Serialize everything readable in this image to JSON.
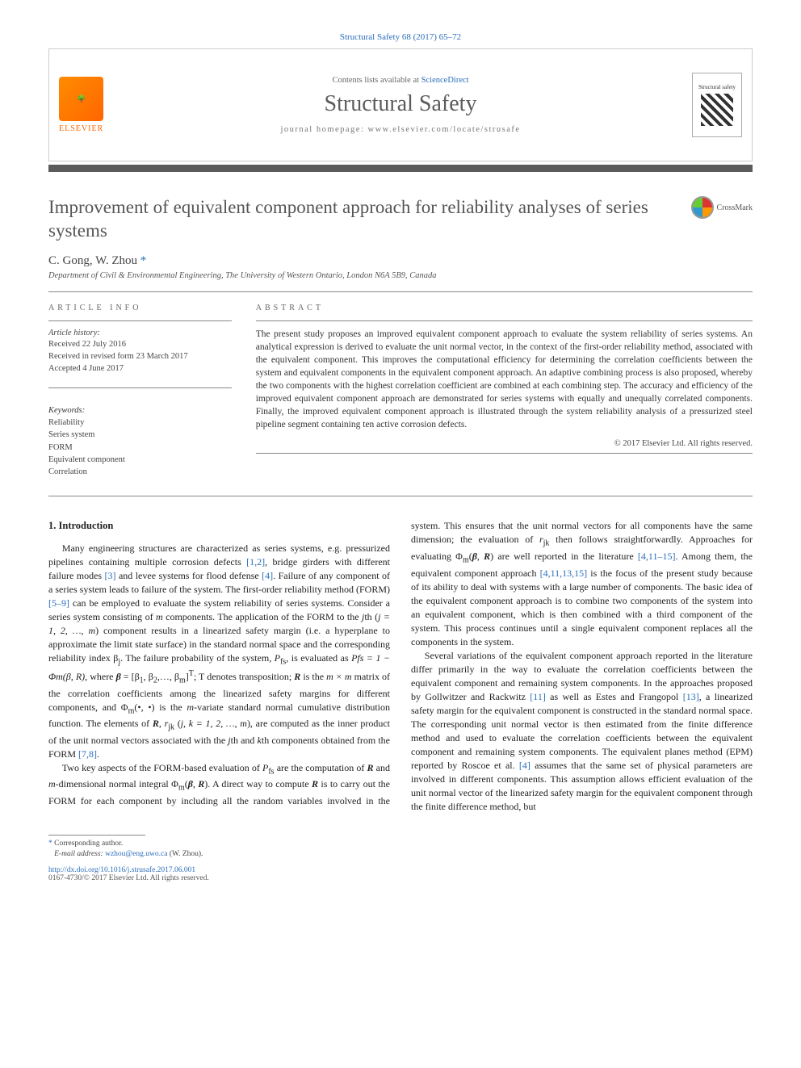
{
  "citation": "Structural Safety 68 (2017) 65–72",
  "masthead": {
    "contents_prefix": "Contents lists available at ",
    "contents_link": "ScienceDirect",
    "journal": "Structural Safety",
    "homepage_prefix": "journal homepage: ",
    "homepage": "www.elsevier.com/locate/strusafe",
    "publisher_label": "ELSEVIER",
    "cover_label": "Structural safety"
  },
  "title": "Improvement of equivalent component approach for reliability analyses of series systems",
  "crossmark": "CrossMark",
  "authors": "C. Gong, W. Zhou",
  "affiliation": "Department of Civil & Environmental Engineering, The University of Western Ontario, London N6A 5B9, Canada",
  "info": {
    "label": "ARTICLE INFO",
    "history_label": "Article history:",
    "received": "Received 22 July 2016",
    "revised": "Received in revised form 23 March 2017",
    "accepted": "Accepted 4 June 2017",
    "keywords_label": "Keywords:",
    "keywords": [
      "Reliability",
      "Series system",
      "FORM",
      "Equivalent component",
      "Correlation"
    ]
  },
  "abstract": {
    "label": "ABSTRACT",
    "text": "The present study proposes an improved equivalent component approach to evaluate the system reliability of series systems. An analytical expression is derived to evaluate the unit normal vector, in the context of the first-order reliability method, associated with the equivalent component. This improves the computational efficiency for determining the correlation coefficients between the system and equivalent components in the equivalent component approach. An adaptive combining process is also proposed, whereby the two components with the highest correlation coefficient are combined at each combining step. The accuracy and efficiency of the improved equivalent component approach are demonstrated for series systems with equally and unequally correlated components. Finally, the improved equivalent component approach is illustrated through the system reliability analysis of a pressurized steel pipeline segment containing ten active corrosion defects.",
    "copyright": "© 2017 Elsevier Ltd. All rights reserved."
  },
  "body": {
    "heading": "1. Introduction",
    "p1a": "Many engineering structures are characterized as series systems, e.g. pressurized pipelines containing multiple corrosion defects ",
    "c1": "[1,2]",
    "p1b": ", bridge girders with different failure modes ",
    "c2": "[3]",
    "p1c": " and levee systems for flood defense ",
    "c3": "[4]",
    "p1d": ". Failure of any component of a series system leads to failure of the system. The first-order reliability method (FORM) ",
    "c4": "[5–9]",
    "p1e": " can be employed to evaluate the system reliability of series systems. Consider a series system consisting of ",
    "i_m": "m",
    "p1f": " components. The application of the FORM to the ",
    "i_j": "j",
    "p1g": "th (",
    "i_jrange": "j = 1, 2, …, m",
    "p1h": ") component results in a linearized safety margin (i.e. a hyperplane to approximate the limit state surface) in the standard normal space and the corresponding reliability index β",
    "sub_j": "j",
    "p1i": ". The failure probability of the system, ",
    "i_Pfs": "P",
    "sub_fs": "fs",
    "p1j": ", is evaluated as ",
    "eq1": "Pfs = 1 − Φm(β, R)",
    "p1k": ", where ",
    "i_beta": "β",
    "p1l": " = [β",
    "sub1": "1",
    "p1m": ", β",
    "sub2": "2",
    "p1n": ",…, β",
    "subm": "m",
    "p1o": "]",
    "supT": "T",
    "p1p": "; T denotes transposition; ",
    "i_R": "R",
    "p1q": " is the ",
    "i_mxm": "m × m",
    "p1r": " matrix of the correlation coefficients among the linearized safety margins for different components, and Φ",
    "subm2": "m",
    "p1s": "(•, •) is the ",
    "i_m2": "m",
    "p1t": "-variate standard normal cumulative distribution function. The elements of ",
    "i_R2": "R",
    "p1u": ", ",
    "i_rjk": "r",
    "sub_jk": "jk",
    "p1v": " (",
    "i_jk": "j, k = 1, 2, …, m",
    "p1w": "), are computed as the inner product of the unit normal vectors associated with the ",
    "i_j2": "j",
    "p1x": "th and ",
    "i_k": "k",
    "p1y": "th components obtained from the FORM ",
    "c5": "[7,8]",
    "p1z": ".",
    "p2a": "Two key aspects of the FORM-based evaluation of ",
    "i_Pfs2": "P",
    "sub_fs2": "fs",
    "p2b": " are the computation of ",
    "i_R3": "R",
    "p2c": " and ",
    "i_m3": "m",
    "p2d": "-dimensional normal integral Φ",
    "subm3": "m",
    "p2e": "(",
    "i_beta2": "β",
    "p2f": ", ",
    "i_R4": "R",
    "p2g": "). A direct way to compute ",
    "i_R5": "R",
    "p2h": " is to carry out the FORM for each component by including all the random variables involved in the system. This ensures that the unit normal vectors for all components have the same dimension; the evaluation of ",
    "i_rjk2": "r",
    "sub_jk2": "jk",
    "p2i": " then follows straightforwardly. Approaches for evaluating Φ",
    "subm4": "m",
    "p2j": "(",
    "i_beta3": "β",
    "p2k": ", ",
    "i_R6": "R",
    "p2l": ") are well reported in the literature ",
    "c6": "[4,11–15]",
    "p2m": ". Among them, the equivalent component approach ",
    "c7": "[4,11,13,15]",
    "p2n": " is the focus of the present study because of its ability to deal with systems with a large number of components. The basic idea of the equivalent component approach is to combine two components of the system into an equivalent component, which is then combined with a third component of the system. This process continues until a single equivalent component replaces all the components in the system.",
    "p3a": "Several variations of the equivalent component approach reported in the literature differ primarily in the way to evaluate the correlation coefficients between the equivalent component and remaining system components. In the approaches proposed by Gollwitzer and Rackwitz ",
    "c8": "[11]",
    "p3b": " as well as Estes and Frangopol ",
    "c9": "[13]",
    "p3c": ", a linearized safety margin for the equivalent component is constructed in the standard normal space. The corresponding unit normal vector is then estimated from the finite difference method and used to evaluate the correlation coefficients between the equivalent component and remaining system components. The equivalent planes method (EPM) reported by Roscoe et al. ",
    "c10": "[4]",
    "p3d": " assumes that the same set of physical parameters are involved in different components. This assumption allows efficient evaluation of the unit normal vector of the linearized safety margin for the equivalent component through the finite difference method, but"
  },
  "footer": {
    "corr_label": "Corresponding author.",
    "email_label": "E-mail address:",
    "email": "wzhou@eng.uwo.ca",
    "email_name": "(W. Zhou).",
    "doi": "http://dx.doi.org/10.1016/j.strusafe.2017.06.001",
    "issn_copy": "0167-4730/© 2017 Elsevier Ltd. All rights reserved."
  },
  "colors": {
    "link": "#2a6ebb",
    "text": "#333333",
    "divider": "#5c5c5c",
    "elsevier": "#ff6600"
  }
}
